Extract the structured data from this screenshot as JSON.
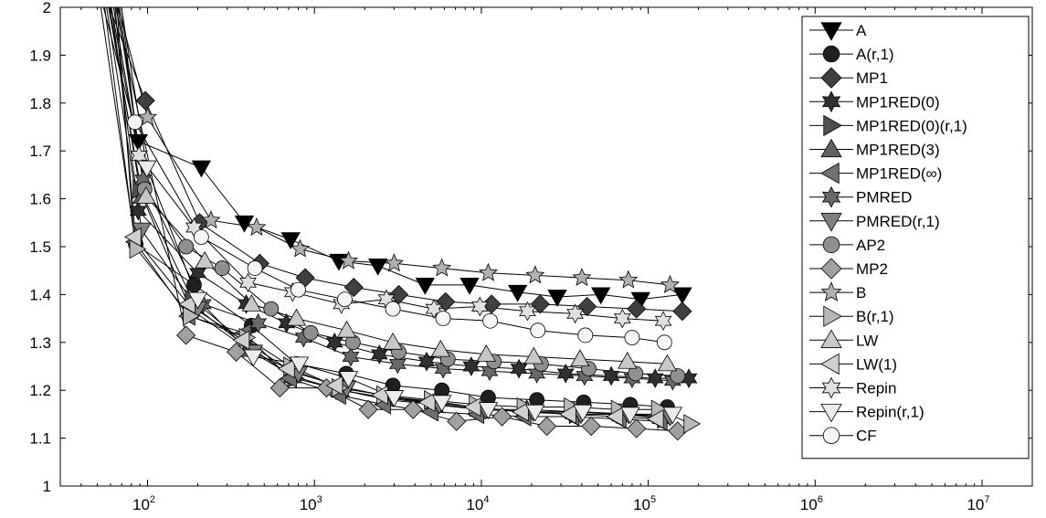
{
  "chart_data": {
    "type": "line",
    "title": "",
    "xlabel": "",
    "ylabel": "",
    "xscale": "log",
    "xlim": [
      30,
      20000000
    ],
    "ylim": [
      1,
      2
    ],
    "grid": false,
    "legend_position": "top-right",
    "x_ticks": [
      {
        "value": 100,
        "base": "10",
        "exp": "2"
      },
      {
        "value": 1000,
        "base": "10",
        "exp": "3"
      },
      {
        "value": 10000,
        "base": "10",
        "exp": "4"
      },
      {
        "value": 100000,
        "base": "10",
        "exp": "5"
      },
      {
        "value": 1000000,
        "base": "10",
        "exp": "6"
      },
      {
        "value": 10000000,
        "base": "10",
        "exp": "7"
      }
    ],
    "y_ticks": [
      1,
      1.1,
      1.2,
      1.3,
      1.4,
      1.5,
      1.6,
      1.7,
      1.8,
      1.9,
      2
    ],
    "y_tick_labels": [
      "1",
      "1.1",
      "1.2",
      "1.3",
      "1.4",
      "1.5",
      "1.6",
      "1.7",
      "1.8",
      "1.9",
      "2"
    ],
    "series": [
      {
        "name": "A",
        "marker": "triangle-down",
        "fill": "#000000",
        "x": [
          50,
          88,
          210,
          380,
          720,
          1400,
          2400,
          4600,
          8500,
          16500,
          28500,
          52000,
          90000,
          160000
        ],
        "y": [
          2.05,
          1.72,
          1.665,
          1.55,
          1.515,
          1.47,
          1.46,
          1.42,
          1.42,
          1.405,
          1.395,
          1.4,
          1.39,
          1.4
        ]
      },
      {
        "name": "A(r,1)",
        "marker": "circle",
        "fill": "#202020",
        "x": [
          50,
          85,
          190,
          420,
          780,
          1550,
          2950,
          5800,
          11000,
          21500,
          41000,
          78000,
          130000
        ],
        "y": [
          2.05,
          1.505,
          1.42,
          1.335,
          1.255,
          1.235,
          1.21,
          1.2,
          1.185,
          1.18,
          1.175,
          1.17,
          1.165
        ]
      },
      {
        "name": "MP1",
        "marker": "diamond",
        "fill": "#404040",
        "x": [
          52,
          97,
          205,
          470,
          880,
          1720,
          3200,
          6100,
          11500,
          22500,
          43000,
          85000,
          160000
        ],
        "y": [
          2.05,
          1.805,
          1.55,
          1.465,
          1.435,
          1.415,
          1.4,
          1.385,
          1.38,
          1.38,
          1.375,
          1.37,
          1.365
        ]
      },
      {
        "name": "MP1RED(0)",
        "marker": "star6",
        "fill": "#303030",
        "x": [
          54,
          88,
          200,
          390,
          680,
          1320,
          2450,
          4700,
          8700,
          16800,
          32000,
          60000,
          110000,
          175000
        ],
        "y": [
          2.05,
          1.575,
          1.445,
          1.38,
          1.34,
          1.3,
          1.275,
          1.26,
          1.25,
          1.245,
          1.235,
          1.23,
          1.225,
          1.225
        ]
      },
      {
        "name": "MP1RED(0)(r,1)",
        "marker": "triangle-right",
        "fill": "#505050",
        "x": [
          56,
          90,
          185,
          410,
          760,
          1480,
          2750,
          5300,
          10000,
          19200,
          37000,
          71000,
          125000
        ],
        "y": [
          2.05,
          1.62,
          1.39,
          1.29,
          1.225,
          1.2,
          1.18,
          1.17,
          1.16,
          1.155,
          1.15,
          1.15,
          1.14
        ]
      },
      {
        "name": "MP1RED(3)",
        "marker": "triangle-up",
        "fill": "#606060",
        "x": [
          55,
          93,
          180,
          400,
          740,
          1430,
          2650,
          5200,
          9700,
          18700,
          36000,
          69000,
          120000
        ],
        "y": [
          2.05,
          1.605,
          1.37,
          1.285,
          1.23,
          1.2,
          1.185,
          1.17,
          1.16,
          1.16,
          1.155,
          1.15,
          1.145
        ]
      },
      {
        "name": "MP1RED(∞)",
        "marker": "triangle-left",
        "fill": "#707070",
        "x": [
          53,
          84,
          175,
          380,
          710,
          1400,
          2600,
          5000,
          9400,
          18000,
          35000,
          67000,
          118000
        ],
        "y": [
          2.05,
          1.51,
          1.355,
          1.32,
          1.225,
          1.19,
          1.17,
          1.155,
          1.15,
          1.145,
          1.145,
          1.14,
          1.135
        ]
      },
      {
        "name": "PMRED",
        "marker": "star6",
        "fill": "#6a6a6a",
        "x": [
          57,
          94,
          215,
          460,
          860,
          1650,
          3150,
          5900,
          11200,
          21500,
          41500,
          80000,
          140000
        ],
        "y": [
          2.05,
          1.64,
          1.38,
          1.34,
          1.31,
          1.27,
          1.255,
          1.245,
          1.24,
          1.235,
          1.23,
          1.225,
          1.22
        ]
      },
      {
        "name": "PMRED(r,1)",
        "marker": "triangle-down",
        "fill": "#808080",
        "x": [
          58,
          92,
          200,
          430,
          800,
          1560,
          2950,
          5600,
          10600,
          20400,
          39500,
          76000,
          135000
        ],
        "y": [
          2.05,
          1.535,
          1.37,
          1.28,
          1.235,
          1.205,
          1.185,
          1.17,
          1.16,
          1.155,
          1.15,
          1.15,
          1.145
        ]
      },
      {
        "name": "AP2",
        "marker": "circle",
        "fill": "#909090",
        "x": [
          59,
          96,
          170,
          280,
          550,
          950,
          1700,
          3200,
          6300,
          11900,
          22800,
          44000,
          84000,
          150000
        ],
        "y": [
          2.05,
          1.62,
          1.5,
          1.455,
          1.37,
          1.32,
          1.3,
          1.28,
          1.265,
          1.26,
          1.255,
          1.245,
          1.235,
          1.23
        ]
      },
      {
        "name": "MP2",
        "marker": "diamond",
        "fill": "#a0a0a0",
        "x": [
          60,
          170,
          340,
          620,
          1180,
          2100,
          3900,
          7100,
          13300,
          24700,
          45500,
          85000,
          150000
        ],
        "y": [
          2.05,
          1.315,
          1.28,
          1.205,
          1.205,
          1.16,
          1.16,
          1.135,
          1.145,
          1.125,
          1.125,
          1.12,
          1.115
        ]
      },
      {
        "name": "B",
        "marker": "star5",
        "fill": "#b0b0b0",
        "x": [
          61,
          100,
          240,
          450,
          820,
          1600,
          3000,
          5800,
          11000,
          21000,
          40000,
          76000,
          135000
        ],
        "y": [
          2.05,
          1.77,
          1.555,
          1.54,
          1.495,
          1.47,
          1.465,
          1.455,
          1.445,
          1.44,
          1.435,
          1.43,
          1.42
        ]
      },
      {
        "name": "B(r,1)",
        "marker": "triangle-right",
        "fill": "#b8b8b8",
        "x": [
          62,
          86,
          180,
          390,
          720,
          1400,
          2600,
          5000,
          9300,
          18000,
          34500,
          66000,
          115000,
          180000
        ],
        "y": [
          2.05,
          1.495,
          1.355,
          1.31,
          1.25,
          1.205,
          1.19,
          1.18,
          1.17,
          1.165,
          1.165,
          1.16,
          1.16,
          1.13
        ]
      },
      {
        "name": "LW",
        "marker": "triangle-up",
        "fill": "#c8c8c8",
        "x": [
          63,
          98,
          220,
          420,
          780,
          1560,
          2950,
          5700,
          10700,
          20600,
          39000,
          75000,
          130000
        ],
        "y": [
          2.05,
          1.605,
          1.47,
          1.38,
          1.35,
          1.325,
          1.3,
          1.285,
          1.275,
          1.27,
          1.265,
          1.26,
          1.255
        ]
      },
      {
        "name": "LW(1)",
        "marker": "triangle-left",
        "fill": "#d0d0d0",
        "x": [
          64,
          83,
          175,
          370,
          690,
          1340,
          2500,
          4800,
          9000,
          17400,
          33500,
          64000,
          112000
        ],
        "y": [
          2.05,
          1.52,
          1.38,
          1.305,
          1.245,
          1.21,
          1.19,
          1.175,
          1.165,
          1.155,
          1.15,
          1.145,
          1.14
        ]
      },
      {
        "name": "Repin",
        "marker": "star6",
        "fill": "#e0e0e0",
        "x": [
          65,
          89,
          190,
          400,
          740,
          1450,
          2700,
          5200,
          9800,
          18900,
          36500,
          70000,
          123000
        ],
        "y": [
          2.05,
          1.69,
          1.54,
          1.425,
          1.405,
          1.38,
          1.39,
          1.37,
          1.375,
          1.365,
          1.36,
          1.35,
          1.345
        ]
      },
      {
        "name": "Repin(r,1)",
        "marker": "triangle-down",
        "fill": "#ececec",
        "x": [
          66,
          99,
          200,
          430,
          810,
          1600,
          3000,
          5800,
          11000,
          21000,
          40500,
          78000,
          140000
        ],
        "y": [
          2.05,
          1.665,
          1.39,
          1.27,
          1.255,
          1.225,
          1.185,
          1.175,
          1.16,
          1.155,
          1.155,
          1.15,
          1.15
        ]
      },
      {
        "name": "CF",
        "marker": "circle",
        "fill": "#f6f6f6",
        "x": [
          67,
          84,
          210,
          440,
          800,
          1520,
          2950,
          5900,
          11300,
          21800,
          42000,
          80000,
          125000
        ],
        "y": [
          2.05,
          1.76,
          1.52,
          1.455,
          1.41,
          1.39,
          1.37,
          1.35,
          1.345,
          1.325,
          1.315,
          1.31,
          1.3
        ]
      }
    ]
  }
}
